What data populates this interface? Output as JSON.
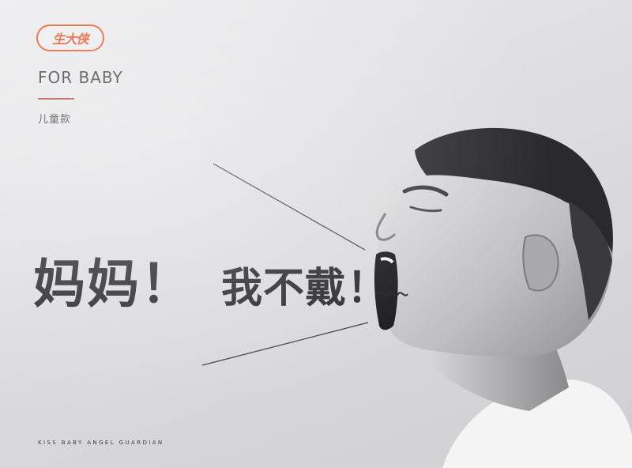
{
  "brand": {
    "logo_text": "生大侠",
    "logo_color": "#e4552a"
  },
  "header": {
    "title": "FOR BABY",
    "subtitle": "儿童款"
  },
  "headline": {
    "main": "妈妈！",
    "sub": "我不戴！"
  },
  "footer": {
    "tagline": "KISS BABY ANGEL GUARDIAN"
  },
  "colors": {
    "accent": "#e4552a",
    "text": "#2a2a2c",
    "background": "#dedee1"
  }
}
